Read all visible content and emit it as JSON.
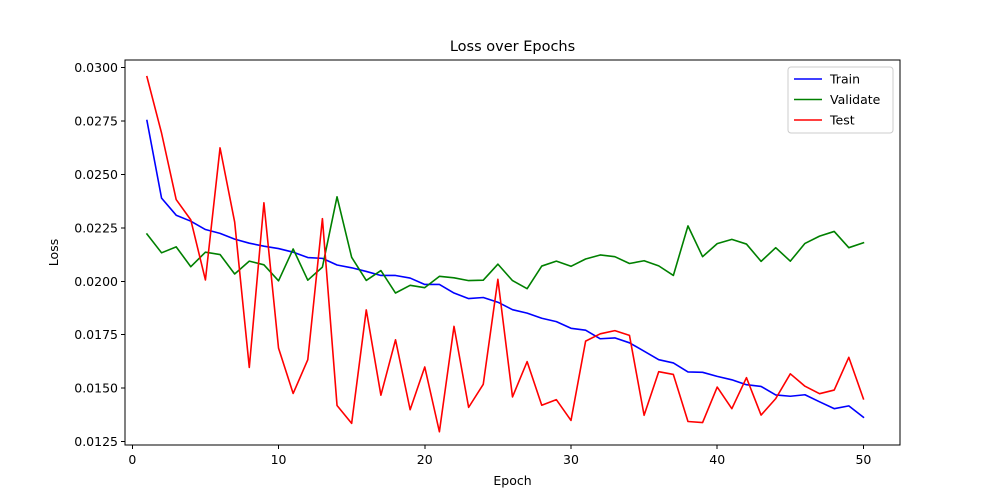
{
  "chart_data": {
    "type": "line",
    "title": "Loss over Epochs",
    "xlabel": "Epoch",
    "ylabel": "Loss",
    "xlim": [
      -0.5,
      52.5
    ],
    "ylim": [
      0.01234,
      0.03035
    ],
    "xticks": [
      0,
      10,
      20,
      30,
      40,
      50
    ],
    "xtick_labels": [
      "0",
      "10",
      "20",
      "30",
      "40",
      "50"
    ],
    "yticks": [
      0.0125,
      0.015,
      0.0175,
      0.02,
      0.0225,
      0.025,
      0.0275,
      0.03
    ],
    "ytick_labels": [
      "0.0125",
      "0.0150",
      "0.0175",
      "0.0200",
      "0.0225",
      "0.0250",
      "0.0275",
      "0.0300"
    ],
    "grid": false,
    "legend_position": "top-right",
    "x": [
      1,
      2,
      3,
      4,
      5,
      6,
      7,
      8,
      9,
      10,
      11,
      12,
      13,
      14,
      15,
      16,
      17,
      18,
      19,
      20,
      21,
      22,
      23,
      24,
      25,
      26,
      27,
      28,
      29,
      30,
      31,
      32,
      33,
      34,
      35,
      36,
      37,
      38,
      39,
      40,
      41,
      42,
      43,
      44,
      45,
      46,
      47,
      48,
      49,
      50
    ],
    "series": [
      {
        "name": "Train",
        "color": "#0000ff",
        "values": [
          0.02752,
          0.02389,
          0.02309,
          0.02281,
          0.02242,
          0.02224,
          0.02197,
          0.02178,
          0.02164,
          0.02153,
          0.02136,
          0.02111,
          0.02107,
          0.02076,
          0.02063,
          0.02046,
          0.02027,
          0.02027,
          0.02015,
          0.01985,
          0.01985,
          0.01945,
          0.01919,
          0.01924,
          0.01902,
          0.01867,
          0.01851,
          0.01827,
          0.01811,
          0.0178,
          0.01771,
          0.01731,
          0.01735,
          0.01712,
          0.01673,
          0.01633,
          0.01618,
          0.01576,
          0.01574,
          0.01555,
          0.01539,
          0.01516,
          0.01508,
          0.01468,
          0.01462,
          0.01469,
          0.01436,
          0.01404,
          0.01417,
          0.01364
        ]
      },
      {
        "name": "Validate",
        "color": "#008000",
        "values": [
          0.02221,
          0.02133,
          0.02161,
          0.02068,
          0.02136,
          0.02125,
          0.02034,
          0.02094,
          0.02077,
          0.02002,
          0.02151,
          0.02005,
          0.02066,
          0.02395,
          0.02112,
          0.02004,
          0.0205,
          0.01945,
          0.01981,
          0.0197,
          0.02023,
          0.02016,
          0.02003,
          0.02005,
          0.0208,
          0.02003,
          0.01965,
          0.02071,
          0.02094,
          0.0207,
          0.02104,
          0.02123,
          0.02115,
          0.02083,
          0.02096,
          0.02072,
          0.02027,
          0.02259,
          0.02115,
          0.02176,
          0.02196,
          0.02174,
          0.02093,
          0.02157,
          0.02094,
          0.02177,
          0.02211,
          0.02233,
          0.02157,
          0.0218
        ]
      },
      {
        "name": "Test",
        "color": "#ff0000",
        "values": [
          0.02957,
          0.02693,
          0.02382,
          0.02287,
          0.02006,
          0.02624,
          0.02277,
          0.01597,
          0.02367,
          0.01687,
          0.01475,
          0.01633,
          0.02293,
          0.01419,
          0.01335,
          0.01866,
          0.01467,
          0.01726,
          0.01399,
          0.01599,
          0.01296,
          0.01789,
          0.0141,
          0.01518,
          0.02009,
          0.01459,
          0.01624,
          0.0142,
          0.01446,
          0.01349,
          0.0172,
          0.01754,
          0.01769,
          0.01747,
          0.01373,
          0.01577,
          0.01564,
          0.01344,
          0.01339,
          0.01505,
          0.01404,
          0.01549,
          0.01374,
          0.01451,
          0.01567,
          0.01509,
          0.01474,
          0.01491,
          0.01644,
          0.0145
        ]
      }
    ]
  }
}
